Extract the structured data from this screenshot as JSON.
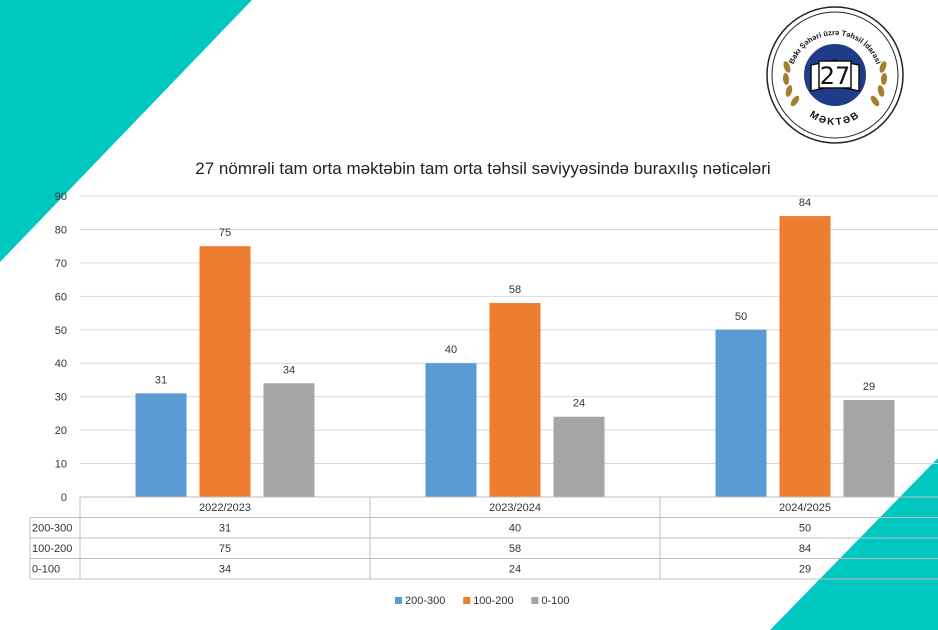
{
  "logo": {
    "ring_text": "Bakı Şəhəri üzrə Təhsil İdarəsi",
    "number": "27",
    "bottom_text": "MƏKTƏB"
  },
  "colors": {
    "teal": "#00c8c0",
    "navy": "#1f3c88",
    "gold": "#a67c2e"
  },
  "chart_data": {
    "type": "bar",
    "title": "27 nömrəli tam orta məktəbin tam orta təhsil səviyyəsində buraxılış nəticələri",
    "categories": [
      "2022/2023",
      "2023/2024",
      "2024/2025"
    ],
    "series": [
      {
        "name": "200-300",
        "values": [
          31,
          40,
          50
        ],
        "color": "#5b9bd5"
      },
      {
        "name": "100-200",
        "values": [
          75,
          58,
          84
        ],
        "color": "#ed7d31"
      },
      {
        "name": "0-100",
        "values": [
          34,
          24,
          29
        ],
        "color": "#a5a5a5"
      }
    ],
    "yticks": [
      "0",
      "10",
      "20",
      "30",
      "40",
      "50",
      "60",
      "70",
      "80",
      "90"
    ],
    "ylim": [
      0,
      90
    ],
    "grid": true,
    "legend": "bottom",
    "data_table": true
  }
}
